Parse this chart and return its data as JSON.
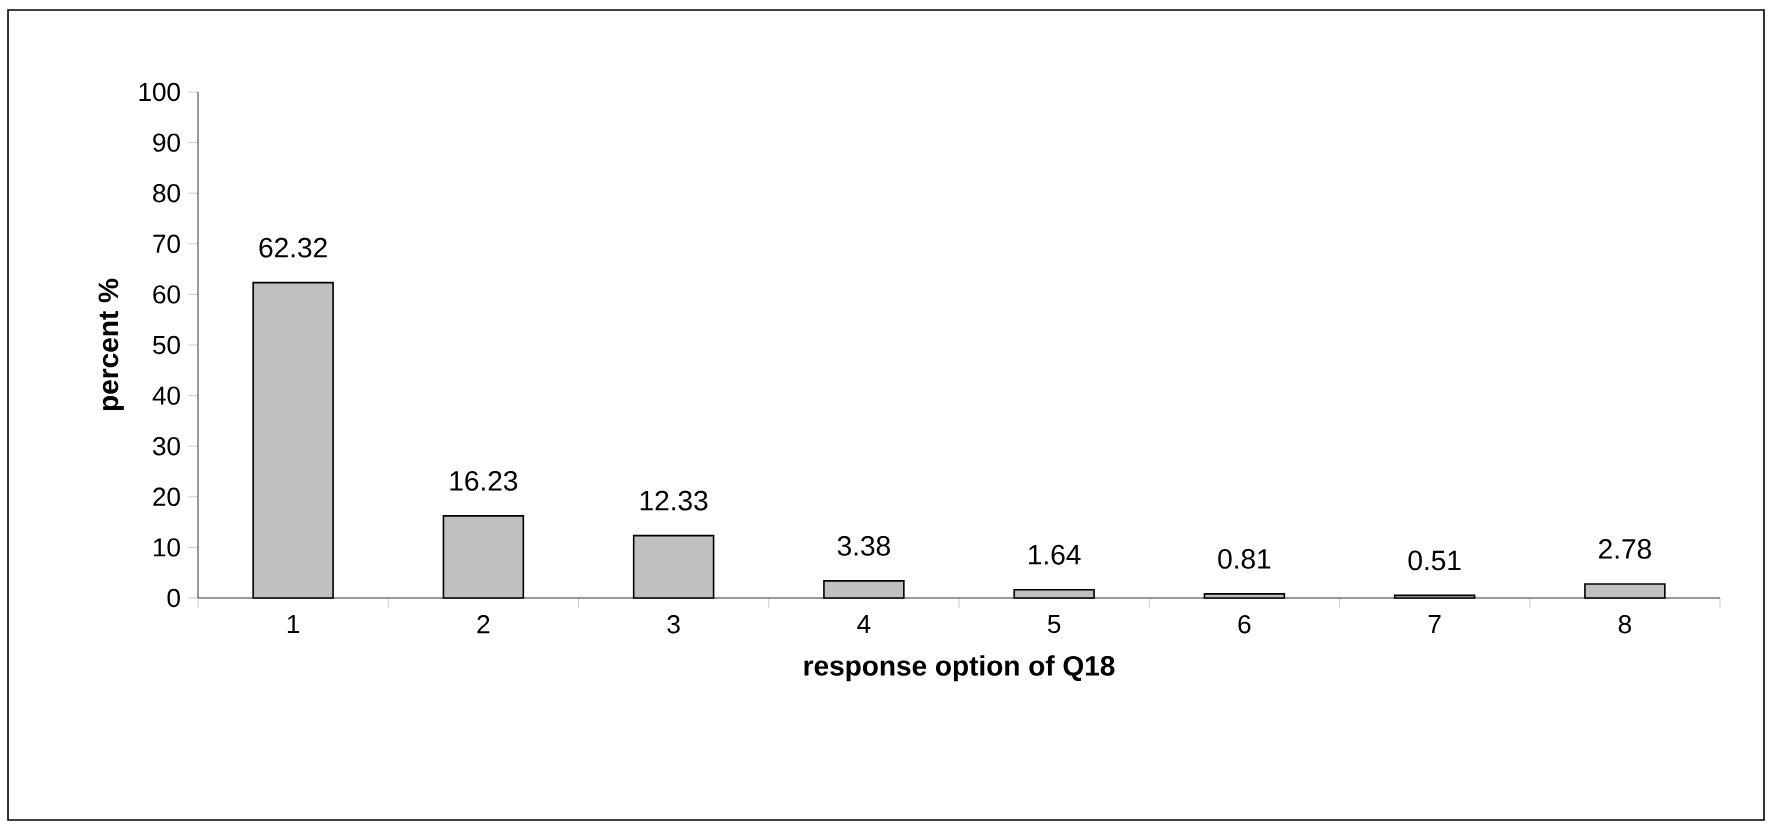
{
  "chart_data": {
    "type": "bar",
    "xlabel": "response option of Q18",
    "ylabel": "percent %",
    "categories": [
      "1",
      "2",
      "3",
      "4",
      "5",
      "6",
      "7",
      "8"
    ],
    "values": [
      62.32,
      16.23,
      12.33,
      3.38,
      1.64,
      0.81,
      0.51,
      2.78
    ],
    "color": "#c0c0c0",
    "data_labels": true,
    "ylim": [
      0,
      100
    ],
    "yticks": [
      0,
      10,
      20,
      30,
      40,
      50,
      60,
      70,
      80,
      90,
      100
    ]
  }
}
